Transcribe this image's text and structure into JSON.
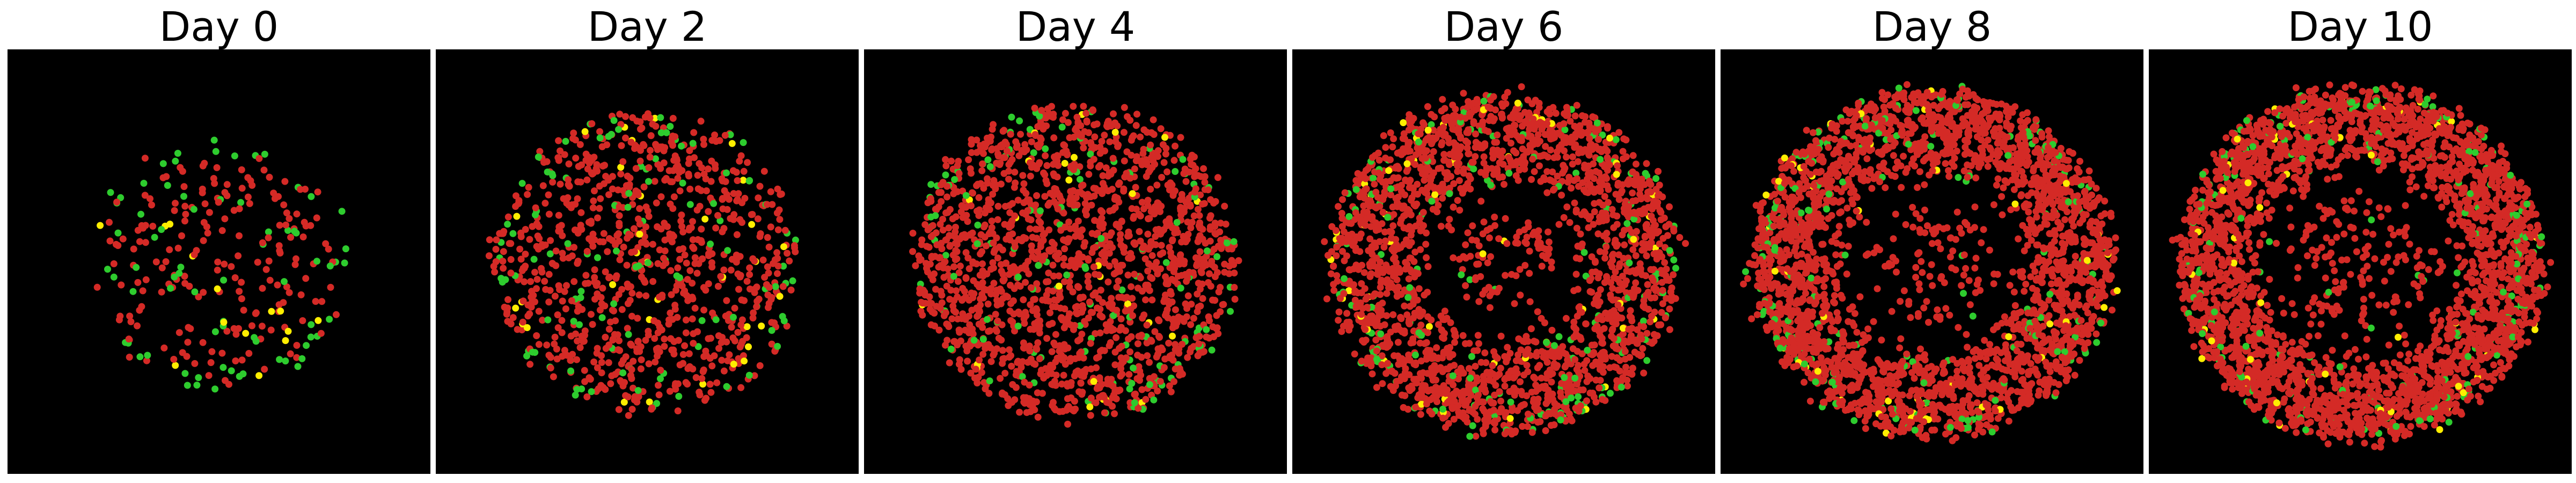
{
  "colors": {
    "background": "#000000",
    "cell_red": "#d42a26",
    "cell_green": "#2ecc2e",
    "cell_yellow": "#ffee00"
  },
  "panels": [
    {
      "title": "Day 0",
      "pattern": "filled-disc",
      "density": 0.32,
      "green_fraction": 0.22,
      "yellow_fraction": 0.04
    },
    {
      "title": "Day 2",
      "pattern": "filled-disc",
      "density": 0.62,
      "green_fraction": 0.1,
      "yellow_fraction": 0.03
    },
    {
      "title": "Day 4",
      "pattern": "filled-disc",
      "density": 0.78,
      "green_fraction": 0.06,
      "yellow_fraction": 0.02
    },
    {
      "title": "Day 6",
      "pattern": "ring",
      "density": 0.8,
      "green_fraction": 0.06,
      "yellow_fraction": 0.015
    },
    {
      "title": "Day 8",
      "pattern": "ring",
      "density": 0.85,
      "green_fraction": 0.05,
      "yellow_fraction": 0.015
    },
    {
      "title": "Day 10",
      "pattern": "ring",
      "density": 0.88,
      "green_fraction": 0.05,
      "yellow_fraction": 0.015
    }
  ]
}
